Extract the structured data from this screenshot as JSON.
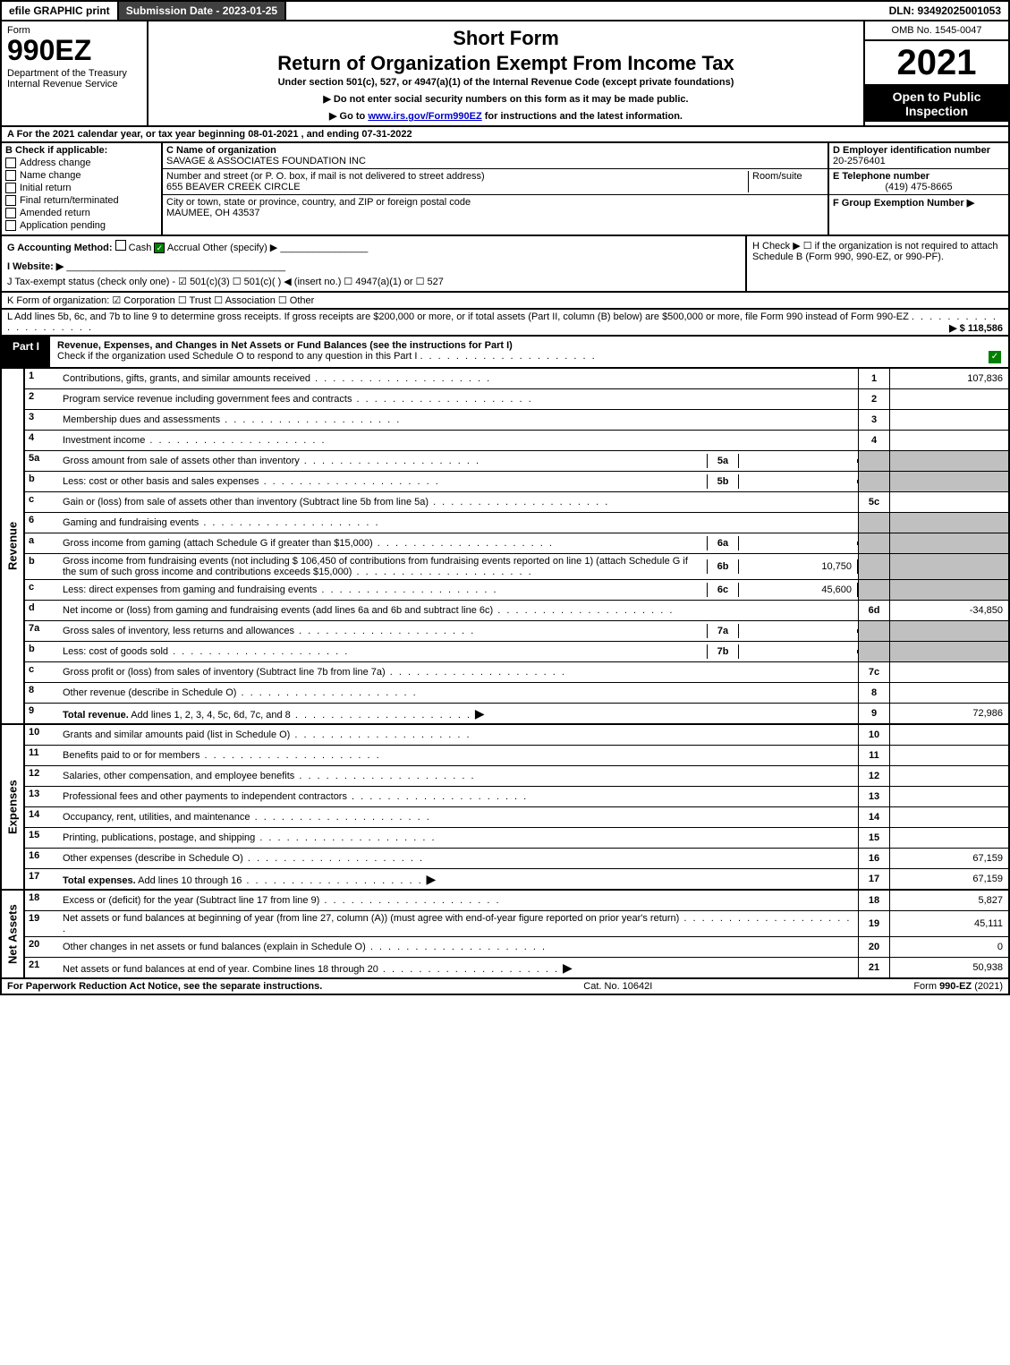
{
  "top_bar": {
    "efile": "efile GRAPHIC print",
    "submission": "Submission Date - 2023-01-25",
    "dln": "DLN: 93492025001053"
  },
  "header": {
    "form_label": "Form",
    "form_number": "990EZ",
    "dept": "Department of the Treasury\nInternal Revenue Service",
    "title1": "Short Form",
    "title2": "Return of Organization Exempt From Income Tax",
    "subtitle": "Under section 501(c), 527, or 4947(a)(1) of the Internal Revenue Code (except private foundations)",
    "instruction1": "▶ Do not enter social security numbers on this form as it may be made public.",
    "instruction2_pre": "▶ Go to ",
    "instruction2_link": "www.irs.gov/Form990EZ",
    "instruction2_post": " for instructions and the latest information.",
    "omb": "OMB No. 1545-0047",
    "year": "2021",
    "inspection": "Open to Public Inspection"
  },
  "row_a": "A  For the 2021 calendar year, or tax year beginning 08-01-2021 , and ending 07-31-2022",
  "section_b": {
    "label": "B  Check if applicable:",
    "items": [
      "Address change",
      "Name change",
      "Initial return",
      "Final return/terminated",
      "Amended return",
      "Application pending"
    ]
  },
  "section_c": {
    "label": "C Name of organization",
    "name": "SAVAGE & ASSOCIATES FOUNDATION INC",
    "street_label": "Number and street (or P. O. box, if mail is not delivered to street address)",
    "street": "655 BEAVER CREEK CIRCLE",
    "room_label": "Room/suite",
    "city_label": "City or town, state or province, country, and ZIP or foreign postal code",
    "city": "MAUMEE, OH  43537"
  },
  "section_d": {
    "label": "D Employer identification number",
    "value": "20-2576401"
  },
  "section_e": {
    "label": "E Telephone number",
    "value": "(419) 475-8665"
  },
  "section_f": {
    "label": "F Group Exemption Number  ▶"
  },
  "section_g": {
    "label": "G Accounting Method:",
    "cash": "Cash",
    "accrual": "Accrual",
    "other": "Other (specify) ▶"
  },
  "section_h": {
    "text": "H  Check ▶ ☐ if the organization is not required to attach Schedule B (Form 990, 990-EZ, or 990-PF)."
  },
  "section_i": "I Website: ▶",
  "section_j": "J Tax-exempt status (check only one) - ☑ 501(c)(3) ☐ 501(c)( ) ◀ (insert no.) ☐ 4947(a)(1) or ☐ 527",
  "section_k": "K Form of organization:  ☑ Corporation  ☐ Trust  ☐ Association  ☐ Other",
  "section_l": {
    "text": "L Add lines 5b, 6c, and 7b to line 9 to determine gross receipts. If gross receipts are $200,000 or more, or if total assets (Part II, column (B) below) are $500,000 or more, file Form 990 instead of Form 990-EZ",
    "value": "▶ $ 118,586"
  },
  "part1": {
    "label": "Part I",
    "title": "Revenue, Expenses, and Changes in Net Assets or Fund Balances (see the instructions for Part I)",
    "subtitle": "Check if the organization used Schedule O to respond to any question in this Part I"
  },
  "side_labels": {
    "revenue": "Revenue",
    "expenses": "Expenses",
    "net_assets": "Net Assets"
  },
  "revenue_rows": [
    {
      "num": "1",
      "desc": "Contributions, gifts, grants, and similar amounts received",
      "rn": "1",
      "val": "107,836"
    },
    {
      "num": "2",
      "desc": "Program service revenue including government fees and contracts",
      "rn": "2",
      "val": ""
    },
    {
      "num": "3",
      "desc": "Membership dues and assessments",
      "rn": "3",
      "val": ""
    },
    {
      "num": "4",
      "desc": "Investment income",
      "rn": "4",
      "val": ""
    },
    {
      "num": "5a",
      "desc": "Gross amount from sale of assets other than inventory",
      "sub_label": "5a",
      "sub_val": "",
      "shaded": true
    },
    {
      "num": "b",
      "desc": "Less: cost or other basis and sales expenses",
      "sub_label": "5b",
      "sub_val": "",
      "shaded": true
    },
    {
      "num": "c",
      "desc": "Gain or (loss) from sale of assets other than inventory (Subtract line 5b from line 5a)",
      "rn": "5c",
      "val": ""
    },
    {
      "num": "6",
      "desc": "Gaming and fundraising events",
      "shaded": true
    },
    {
      "num": "a",
      "desc": "Gross income from gaming (attach Schedule G if greater than $15,000)",
      "sub_label": "6a",
      "sub_val": "",
      "shaded": true
    },
    {
      "num": "b",
      "desc": "Gross income from fundraising events (not including $ 106,450 of contributions from fundraising events reported on line 1) (attach Schedule G if the sum of such gross income and contributions exceeds $15,000)",
      "sub_label": "6b",
      "sub_val": "10,750",
      "shaded": true
    },
    {
      "num": "c",
      "desc": "Less: direct expenses from gaming and fundraising events",
      "sub_label": "6c",
      "sub_val": "45,600",
      "shaded": true
    },
    {
      "num": "d",
      "desc": "Net income or (loss) from gaming and fundraising events (add lines 6a and 6b and subtract line 6c)",
      "rn": "6d",
      "val": "-34,850"
    },
    {
      "num": "7a",
      "desc": "Gross sales of inventory, less returns and allowances",
      "sub_label": "7a",
      "sub_val": "",
      "shaded": true
    },
    {
      "num": "b",
      "desc": "Less: cost of goods sold",
      "sub_label": "7b",
      "sub_val": "",
      "shaded": true
    },
    {
      "num": "c",
      "desc": "Gross profit or (loss) from sales of inventory (Subtract line 7b from line 7a)",
      "rn": "7c",
      "val": ""
    },
    {
      "num": "8",
      "desc": "Other revenue (describe in Schedule O)",
      "rn": "8",
      "val": ""
    },
    {
      "num": "9",
      "desc": "Total revenue. Add lines 1, 2, 3, 4, 5c, 6d, 7c, and 8",
      "rn": "9",
      "val": "72,986",
      "bold": true,
      "arrow": true
    }
  ],
  "expense_rows": [
    {
      "num": "10",
      "desc": "Grants and similar amounts paid (list in Schedule O)",
      "rn": "10",
      "val": ""
    },
    {
      "num": "11",
      "desc": "Benefits paid to or for members",
      "rn": "11",
      "val": ""
    },
    {
      "num": "12",
      "desc": "Salaries, other compensation, and employee benefits",
      "rn": "12",
      "val": ""
    },
    {
      "num": "13",
      "desc": "Professional fees and other payments to independent contractors",
      "rn": "13",
      "val": ""
    },
    {
      "num": "14",
      "desc": "Occupancy, rent, utilities, and maintenance",
      "rn": "14",
      "val": ""
    },
    {
      "num": "15",
      "desc": "Printing, publications, postage, and shipping",
      "rn": "15",
      "val": ""
    },
    {
      "num": "16",
      "desc": "Other expenses (describe in Schedule O)",
      "rn": "16",
      "val": "67,159"
    },
    {
      "num": "17",
      "desc": "Total expenses. Add lines 10 through 16",
      "rn": "17",
      "val": "67,159",
      "bold": true,
      "arrow": true
    }
  ],
  "netasset_rows": [
    {
      "num": "18",
      "desc": "Excess or (deficit) for the year (Subtract line 17 from line 9)",
      "rn": "18",
      "val": "5,827"
    },
    {
      "num": "19",
      "desc": "Net assets or fund balances at beginning of year (from line 27, column (A)) (must agree with end-of-year figure reported on prior year's return)",
      "rn": "19",
      "val": "45,111"
    },
    {
      "num": "20",
      "desc": "Other changes in net assets or fund balances (explain in Schedule O)",
      "rn": "20",
      "val": "0"
    },
    {
      "num": "21",
      "desc": "Net assets or fund balances at end of year. Combine lines 18 through 20",
      "rn": "21",
      "val": "50,938",
      "arrow": true
    }
  ],
  "footer": {
    "left": "For Paperwork Reduction Act Notice, see the separate instructions.",
    "center": "Cat. No. 10642I",
    "right": "Form 990-EZ (2021)"
  }
}
